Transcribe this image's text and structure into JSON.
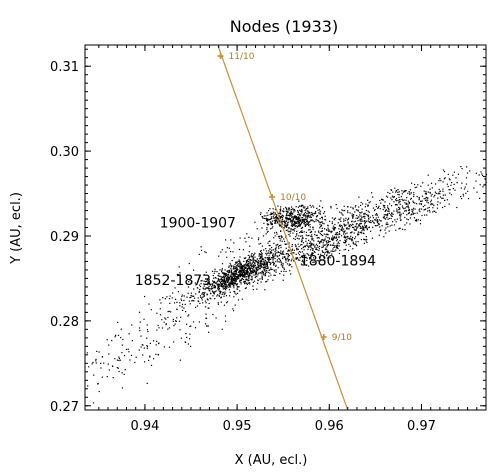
{
  "chart_data": {
    "type": "scatter",
    "title": "Nodes (1933)",
    "xlabel": "X (AU, ecl.)",
    "ylabel": "Y (AU, ecl.)",
    "xlim": [
      0.9335,
      0.977
    ],
    "ylim": [
      0.2695,
      0.3125
    ],
    "xticks": [
      0.94,
      0.95,
      0.96,
      0.97
    ],
    "yticks": [
      0.27,
      0.28,
      0.29,
      0.3,
      0.31
    ],
    "xtick_labels": [
      "0.94",
      "0.95",
      "0.96",
      "0.97"
    ],
    "ytick_labels": [
      "0.27",
      "0.28",
      "0.29",
      "0.30",
      "0.31"
    ],
    "grid": false,
    "earth_path": {
      "color": "#c8913a",
      "x": [
        0.9479,
        0.962
      ],
      "y": [
        0.3125,
        0.2695
      ],
      "markers": [
        {
          "label": "11/10",
          "x": 0.9482,
          "y": 0.3112
        },
        {
          "label": "10/10",
          "x": 0.9538,
          "y": 0.2946
        },
        {
          "label": "9/10",
          "x": 0.9594,
          "y": 0.2781
        }
      ]
    },
    "clusters": [
      {
        "name": "1852-1873",
        "center": [
          0.95,
          0.2855
        ],
        "spread": [
          0.0018,
          0.0007
        ],
        "count": 700,
        "slope": 0.52
      },
      {
        "name": "1880-1894",
        "center": [
          0.9588,
          0.289
        ],
        "spread": [
          0.0075,
          0.001
        ],
        "count": 1100,
        "slope": 0.42
      },
      {
        "name": "1900-1907",
        "center": [
          0.9558,
          0.2922
        ],
        "spread": [
          0.0015,
          0.0007
        ],
        "count": 450,
        "slope": 0.1
      },
      {
        "name": "",
        "center": [
          0.964,
          0.293
        ],
        "spread": [
          0.008,
          0.001
        ],
        "count": 500,
        "slope": 0.32
      },
      {
        "name": "",
        "center": [
          0.942,
          0.279
        ],
        "spread": [
          0.005,
          0.002
        ],
        "count": 220,
        "slope": 0.58
      }
    ],
    "annotations": [
      {
        "text": "1900-1907",
        "x": 0.9416,
        "y": 0.291
      },
      {
        "text": "1852-1873",
        "x": 0.9389,
        "y": 0.2842
      },
      {
        "text": "1880-1894",
        "x": 0.9568,
        "y": 0.2865
      }
    ]
  }
}
